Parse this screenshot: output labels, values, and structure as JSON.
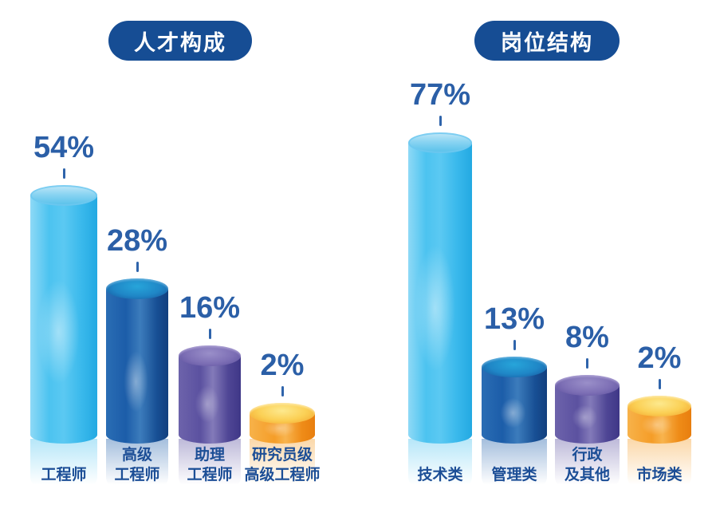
{
  "page": {
    "background": "#ffffff"
  },
  "palette": {
    "lightblue": "#49C2EF",
    "royalblue": "#1C5DA9",
    "purple": "#5B51A0",
    "orange": "#F59D28",
    "title_badge_bg": "#164D94",
    "title_text": "#FFFFFF",
    "value_text": "#2B5FA7",
    "category_text": "#1C4E96",
    "tick": "#2F64AB"
  },
  "charts": [
    {
      "title": "人才构成",
      "bars": [
        {
          "value_label": "54%",
          "category_lines": [
            "工程师"
          ],
          "color_key": "lightblue"
        },
        {
          "value_label": "28%",
          "category_lines": [
            "高级",
            "工程师"
          ],
          "color_key": "royalblue"
        },
        {
          "value_label": "16%",
          "category_lines": [
            "助理",
            "工程师"
          ],
          "color_key": "purple"
        },
        {
          "value_label": "2%",
          "category_lines": [
            "研究员级",
            "高级工程师"
          ],
          "color_key": "orange"
        }
      ]
    },
    {
      "title": "岗位结构",
      "bars": [
        {
          "value_label": "77%",
          "category_lines": [
            "技术类"
          ],
          "color_key": "lightblue"
        },
        {
          "value_label": "13%",
          "category_lines": [
            "管理类"
          ],
          "color_key": "royalblue"
        },
        {
          "value_label": "8%",
          "category_lines": [
            "行政",
            "及其他"
          ],
          "color_key": "purple"
        },
        {
          "value_label": "2%",
          "category_lines": [
            "市场类"
          ],
          "color_key": "orange"
        }
      ]
    }
  ],
  "chart_data": [
    {
      "type": "bar",
      "title": "人才构成",
      "categories": [
        "工程师",
        "高级工程师",
        "助理工程师",
        "研究员级高级工程师"
      ],
      "values": [
        54,
        28,
        16,
        2
      ],
      "unit": "%",
      "xlabel": "",
      "ylabel": "",
      "ylim": [
        0,
        60
      ],
      "grid": false,
      "legend": false,
      "style": "3d-cylinder, value labels above bars, category labels below"
    },
    {
      "type": "bar",
      "title": "岗位结构",
      "categories": [
        "技术类",
        "管理类",
        "行政及其他",
        "市场类"
      ],
      "values": [
        77,
        13,
        8,
        2
      ],
      "unit": "%",
      "xlabel": "",
      "ylabel": "",
      "ylim": [
        0,
        85
      ],
      "grid": false,
      "legend": false,
      "style": "3d-cylinder, value labels above bars, category labels below"
    }
  ]
}
